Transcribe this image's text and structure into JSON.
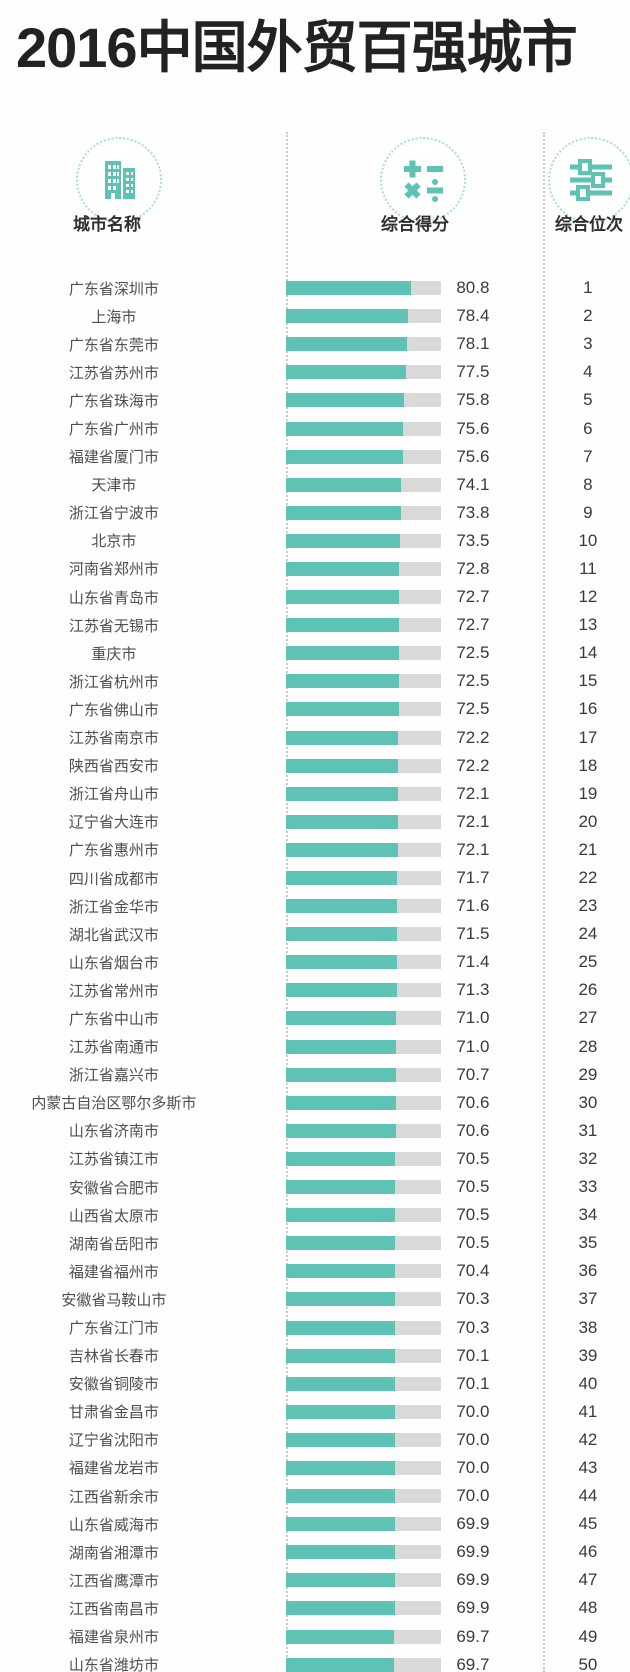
{
  "title": "2016中国外贸百强城市",
  "columns": {
    "city": {
      "label": "城市名称",
      "icon": "buildings-icon"
    },
    "score": {
      "label": "综合得分",
      "icon": "math-operations-icon"
    },
    "rank": {
      "label": "综合位次",
      "icon": "sliders-icon"
    }
  },
  "colors": {
    "accent_teal": "#5ec3b5",
    "bar_track_gray": "#d9d9d9",
    "dotted_circle_teal": "#a8dcd5",
    "divider_gray": "#c9c9c9",
    "title_text": "#222222",
    "body_text": "#4e4e4e"
  },
  "chart_data": {
    "type": "bar",
    "title": "2016中国外贸百强城市",
    "category_label": "城市名称",
    "value_label": "综合得分",
    "rank_label": "综合位次",
    "orientation": "horizontal",
    "value_range": [
      0,
      100
    ],
    "grid": false,
    "legend": false,
    "rows": [
      {
        "city": "广东省深圳市",
        "score": 80.8,
        "rank": 1
      },
      {
        "city": "上海市",
        "score": 78.4,
        "rank": 2
      },
      {
        "city": "广东省东莞市",
        "score": 78.1,
        "rank": 3
      },
      {
        "city": "江苏省苏州市",
        "score": 77.5,
        "rank": 4
      },
      {
        "city": "广东省珠海市",
        "score": 75.8,
        "rank": 5
      },
      {
        "city": "广东省广州市",
        "score": 75.6,
        "rank": 6
      },
      {
        "city": "福建省厦门市",
        "score": 75.6,
        "rank": 7
      },
      {
        "city": "天津市",
        "score": 74.1,
        "rank": 8
      },
      {
        "city": "浙江省宁波市",
        "score": 73.8,
        "rank": 9
      },
      {
        "city": "北京市",
        "score": 73.5,
        "rank": 10
      },
      {
        "city": "河南省郑州市",
        "score": 72.8,
        "rank": 11
      },
      {
        "city": "山东省青岛市",
        "score": 72.7,
        "rank": 12
      },
      {
        "city": "江苏省无锡市",
        "score": 72.7,
        "rank": 13
      },
      {
        "city": "重庆市",
        "score": 72.5,
        "rank": 14
      },
      {
        "city": "浙江省杭州市",
        "score": 72.5,
        "rank": 15
      },
      {
        "city": "广东省佛山市",
        "score": 72.5,
        "rank": 16
      },
      {
        "city": "江苏省南京市",
        "score": 72.2,
        "rank": 17
      },
      {
        "city": "陕西省西安市",
        "score": 72.2,
        "rank": 18
      },
      {
        "city": "浙江省舟山市",
        "score": 72.1,
        "rank": 19
      },
      {
        "city": "辽宁省大连市",
        "score": 72.1,
        "rank": 20
      },
      {
        "city": "广东省惠州市",
        "score": 72.1,
        "rank": 21
      },
      {
        "city": "四川省成都市",
        "score": 71.7,
        "rank": 22
      },
      {
        "city": "浙江省金华市",
        "score": 71.6,
        "rank": 23
      },
      {
        "city": "湖北省武汉市",
        "score": 71.5,
        "rank": 24
      },
      {
        "city": "山东省烟台市",
        "score": 71.4,
        "rank": 25
      },
      {
        "city": "江苏省常州市",
        "score": 71.3,
        "rank": 26
      },
      {
        "city": "广东省中山市",
        "score": 71.0,
        "rank": 27
      },
      {
        "city": "江苏省南通市",
        "score": 71.0,
        "rank": 28
      },
      {
        "city": "浙江省嘉兴市",
        "score": 70.7,
        "rank": 29
      },
      {
        "city": "内蒙古自治区鄂尔多斯市",
        "score": 70.6,
        "rank": 30
      },
      {
        "city": "山东省济南市",
        "score": 70.6,
        "rank": 31
      },
      {
        "city": "江苏省镇江市",
        "score": 70.5,
        "rank": 32
      },
      {
        "city": "安徽省合肥市",
        "score": 70.5,
        "rank": 33
      },
      {
        "city": "山西省太原市",
        "score": 70.5,
        "rank": 34
      },
      {
        "city": "湖南省岳阳市",
        "score": 70.5,
        "rank": 35
      },
      {
        "city": "福建省福州市",
        "score": 70.4,
        "rank": 36
      },
      {
        "city": "安徽省马鞍山市",
        "score": 70.3,
        "rank": 37
      },
      {
        "city": "广东省江门市",
        "score": 70.3,
        "rank": 38
      },
      {
        "city": "吉林省长春市",
        "score": 70.1,
        "rank": 39
      },
      {
        "city": "安徽省铜陵市",
        "score": 70.1,
        "rank": 40
      },
      {
        "city": "甘肃省金昌市",
        "score": 70.0,
        "rank": 41
      },
      {
        "city": "辽宁省沈阳市",
        "score": 70.0,
        "rank": 42
      },
      {
        "city": "福建省龙岩市",
        "score": 70.0,
        "rank": 43
      },
      {
        "city": "江西省新余市",
        "score": 70.0,
        "rank": 44
      },
      {
        "city": "山东省威海市",
        "score": 69.9,
        "rank": 45
      },
      {
        "city": "湖南省湘潭市",
        "score": 69.9,
        "rank": 46
      },
      {
        "city": "江西省鹰潭市",
        "score": 69.9,
        "rank": 47
      },
      {
        "city": "江西省南昌市",
        "score": 69.9,
        "rank": 48
      },
      {
        "city": "福建省泉州市",
        "score": 69.7,
        "rank": 49
      },
      {
        "city": "山东省潍坊市",
        "score": 69.7,
        "rank": 50
      }
    ]
  }
}
